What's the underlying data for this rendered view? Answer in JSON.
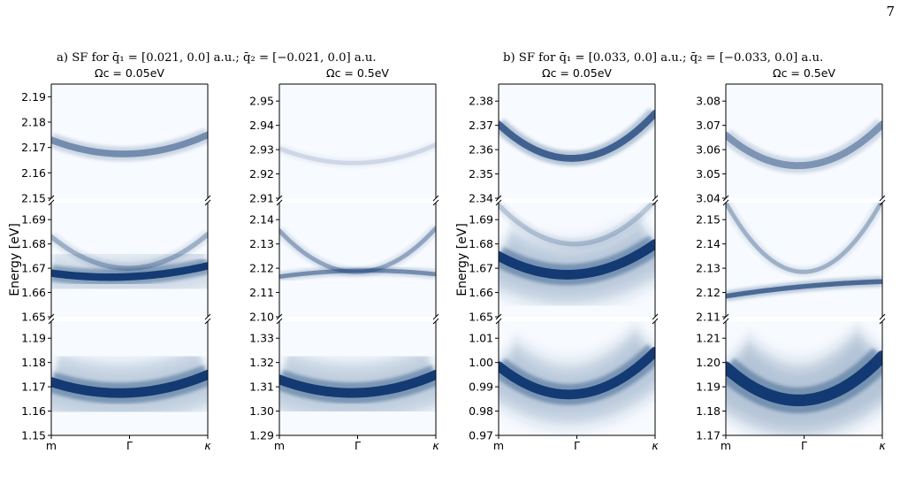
{
  "page_number": "7",
  "chart_data": [
    {
      "type": "heatmap",
      "panel_caption": "a) SF for q̄₁ = [0.021, 0.0] a.u.; q̄₂ = [−0.021, 0.0] a.u.",
      "ylabel": "Energy [eV]",
      "xticks": [
        "m",
        "Γ",
        "κ"
      ],
      "subplots": [
        {
          "title": "Ωc = 0.05eV",
          "bands": [
            {
              "ylim": [
                2.15,
                2.195
              ],
              "yticks": [
                "2.15",
                "2.16",
                "2.17",
                "2.18",
                "2.19"
              ],
              "curves": [
                {
                  "x": [
                    0,
                    0.5,
                    1
                  ],
                  "y": [
                    2.173,
                    2.1675,
                    2.175
                  ],
                  "sigma": 0.0012,
                  "alpha": 0.5,
                  "halo": 0
                }
              ]
            },
            {
              "ylim": [
                1.65,
                1.697
              ],
              "yticks": [
                "1.65",
                "1.66",
                "1.67",
                "1.68",
                "1.69"
              ],
              "curves": [
                {
                  "x": [
                    0,
                    0.5,
                    1
                  ],
                  "y": [
                    1.683,
                    1.67,
                    1.684
                  ],
                  "sigma": 0.0009,
                  "alpha": 0.32,
                  "halo": 0
                },
                {
                  "x": [
                    0,
                    0.5,
                    1
                  ],
                  "y": [
                    1.668,
                    1.6665,
                    1.671
                  ],
                  "sigma": 0.0014,
                  "alpha": 1.0,
                  "halo": 0.35
                }
              ]
            },
            {
              "ylim": [
                1.15,
                1.197
              ],
              "yticks": [
                "1.15",
                "1.16",
                "1.17",
                "1.18",
                "1.19"
              ],
              "curves": [
                {
                  "x": [
                    0,
                    0.5,
                    1
                  ],
                  "y": [
                    1.172,
                    1.1675,
                    1.175
                  ],
                  "sigma": 0.0018,
                  "alpha": 1.0,
                  "halo": 0.5
                }
              ]
            }
          ]
        },
        {
          "title": "Ωc = 0.5eV",
          "bands": [
            {
              "ylim": [
                2.91,
                2.957
              ],
              "yticks": [
                "2.91",
                "2.92",
                "2.93",
                "2.94",
                "2.95"
              ],
              "curves": [
                {
                  "x": [
                    0,
                    0.5,
                    1
                  ],
                  "y": [
                    2.9305,
                    2.9245,
                    2.932
                  ],
                  "sigma": 0.0008,
                  "alpha": 0.13,
                  "halo": 0
                }
              ]
            },
            {
              "ylim": [
                2.1,
                2.147
              ],
              "yticks": [
                "2.10",
                "2.11",
                "2.12",
                "2.13",
                "2.14"
              ],
              "curves": [
                {
                  "x": [
                    0,
                    0.5,
                    1
                  ],
                  "y": [
                    2.1355,
                    2.1185,
                    2.1365
                  ],
                  "sigma": 0.0008,
                  "alpha": 0.38,
                  "halo": 0
                },
                {
                  "x": [
                    0,
                    0.5,
                    1
                  ],
                  "y": [
                    2.1165,
                    2.119,
                    2.1175
                  ],
                  "sigma": 0.0008,
                  "alpha": 0.5,
                  "halo": 0
                }
              ]
            },
            {
              "ylim": [
                1.29,
                1.337
              ],
              "yticks": [
                "1.29",
                "1.30",
                "1.31",
                "1.32",
                "1.33"
              ],
              "curves": [
                {
                  "x": [
                    0,
                    0.5,
                    1
                  ],
                  "y": [
                    1.313,
                    1.3075,
                    1.315
                  ],
                  "sigma": 0.0018,
                  "alpha": 1.0,
                  "halo": 0.5
                }
              ]
            }
          ]
        }
      ]
    },
    {
      "type": "heatmap",
      "panel_caption": "b) SF for q̄₁ = [0.033, 0.0] a.u.; q̄₂ = [−0.033, 0.0] a.u.",
      "ylabel": "Energy [eV]",
      "xticks": [
        "m",
        "Γ",
        "κ"
      ],
      "subplots": [
        {
          "title": "Ωc = 0.05eV",
          "bands": [
            {
              "ylim": [
                2.34,
                2.387
              ],
              "yticks": [
                "2.34",
                "2.35",
                "2.36",
                "2.37",
                "2.38"
              ],
              "curves": [
                {
                  "x": [
                    0,
                    0.5,
                    1
                  ],
                  "y": [
                    2.3705,
                    2.3565,
                    2.375
                  ],
                  "sigma": 0.0013,
                  "alpha": 0.75,
                  "halo": 0
                }
              ]
            },
            {
              "ylim": [
                1.65,
                1.697
              ],
              "yticks": [
                "1.65",
                "1.66",
                "1.67",
                "1.68",
                "1.69"
              ],
              "curves": [
                {
                  "x": [
                    0,
                    0.5,
                    1
                  ],
                  "y": [
                    1.696,
                    1.68,
                    1.698
                  ],
                  "sigma": 0.0009,
                  "alpha": 0.22,
                  "halo": 0
                },
                {
                  "x": [
                    0,
                    0.5,
                    1
                  ],
                  "y": [
                    1.675,
                    1.6675,
                    1.68
                  ],
                  "sigma": 0.0018,
                  "alpha": 1.0,
                  "halo": 0.55
                }
              ]
            },
            {
              "ylim": [
                0.97,
                1.017
              ],
              "yticks": [
                "0.97",
                "0.98",
                "0.99",
                "1.00",
                "1.01"
              ],
              "curves": [
                {
                  "x": [
                    0,
                    0.5,
                    1
                  ],
                  "y": [
                    0.9985,
                    0.987,
                    1.0045
                  ],
                  "sigma": 0.0018,
                  "alpha": 1.0,
                  "halo": 0.55
                }
              ]
            }
          ]
        },
        {
          "title": "Ωc = 0.5eV",
          "bands": [
            {
              "ylim": [
                3.04,
                3.087
              ],
              "yticks": [
                "3.04",
                "3.05",
                "3.06",
                "3.07",
                "3.08"
              ],
              "curves": [
                {
                  "x": [
                    0,
                    0.5,
                    1
                  ],
                  "y": [
                    3.066,
                    3.0535,
                    3.0705
                  ],
                  "sigma": 0.0013,
                  "alpha": 0.45,
                  "halo": 0
                }
              ]
            },
            {
              "ylim": [
                2.11,
                2.157
              ],
              "yticks": [
                "2.11",
                "2.12",
                "2.13",
                "2.14",
                "2.15"
              ],
              "curves": [
                {
                  "x": [
                    0,
                    0.5,
                    1
                  ],
                  "y": [
                    2.157,
                    2.1285,
                    2.158
                  ],
                  "sigma": 0.0008,
                  "alpha": 0.32,
                  "halo": 0
                },
                {
                  "x": [
                    0,
                    0.5,
                    1
                  ],
                  "y": [
                    2.1185,
                    2.1225,
                    2.1245
                  ],
                  "sigma": 0.0009,
                  "alpha": 0.7,
                  "halo": 0
                }
              ]
            },
            {
              "ylim": [
                1.17,
                1.217
              ],
              "yticks": [
                "1.17",
                "1.18",
                "1.19",
                "1.20",
                "1.21"
              ],
              "curves": [
                {
                  "x": [
                    0,
                    0.5,
                    1
                  ],
                  "y": [
                    1.198,
                    1.1845,
                    1.2025
                  ],
                  "sigma": 0.0022,
                  "alpha": 1.0,
                  "halo": 0.6
                }
              ]
            }
          ]
        }
      ]
    }
  ],
  "colors": {
    "background": "#f7fbff",
    "curve": "#08306b",
    "axis": "#000000"
  }
}
